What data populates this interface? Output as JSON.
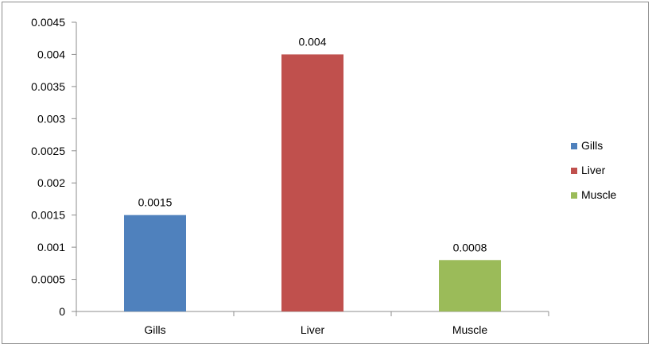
{
  "chart_data": {
    "type": "bar",
    "categories": [
      "Gills",
      "Liver",
      "Muscle"
    ],
    "values": [
      0.0015,
      0.004,
      0.0008
    ],
    "value_labels": [
      "0.0015",
      "0.004",
      "0.0008"
    ],
    "colors": [
      "#4f81bd",
      "#c0504d",
      "#9bbb59"
    ],
    "ylim": [
      0,
      0.0045
    ],
    "yticks": [
      0,
      0.0005,
      0.001,
      0.0015,
      0.002,
      0.0025,
      0.003,
      0.0035,
      0.004,
      0.0045
    ],
    "ytick_labels": [
      "0",
      "0.0005",
      "0.001",
      "0.0015",
      "0.002",
      "0.0025",
      "0.003",
      "0.0035",
      "0.004",
      "0.0045"
    ],
    "grid": false,
    "legend": {
      "position": "right",
      "entries": [
        "Gills",
        "Liver",
        "Muscle"
      ]
    }
  }
}
